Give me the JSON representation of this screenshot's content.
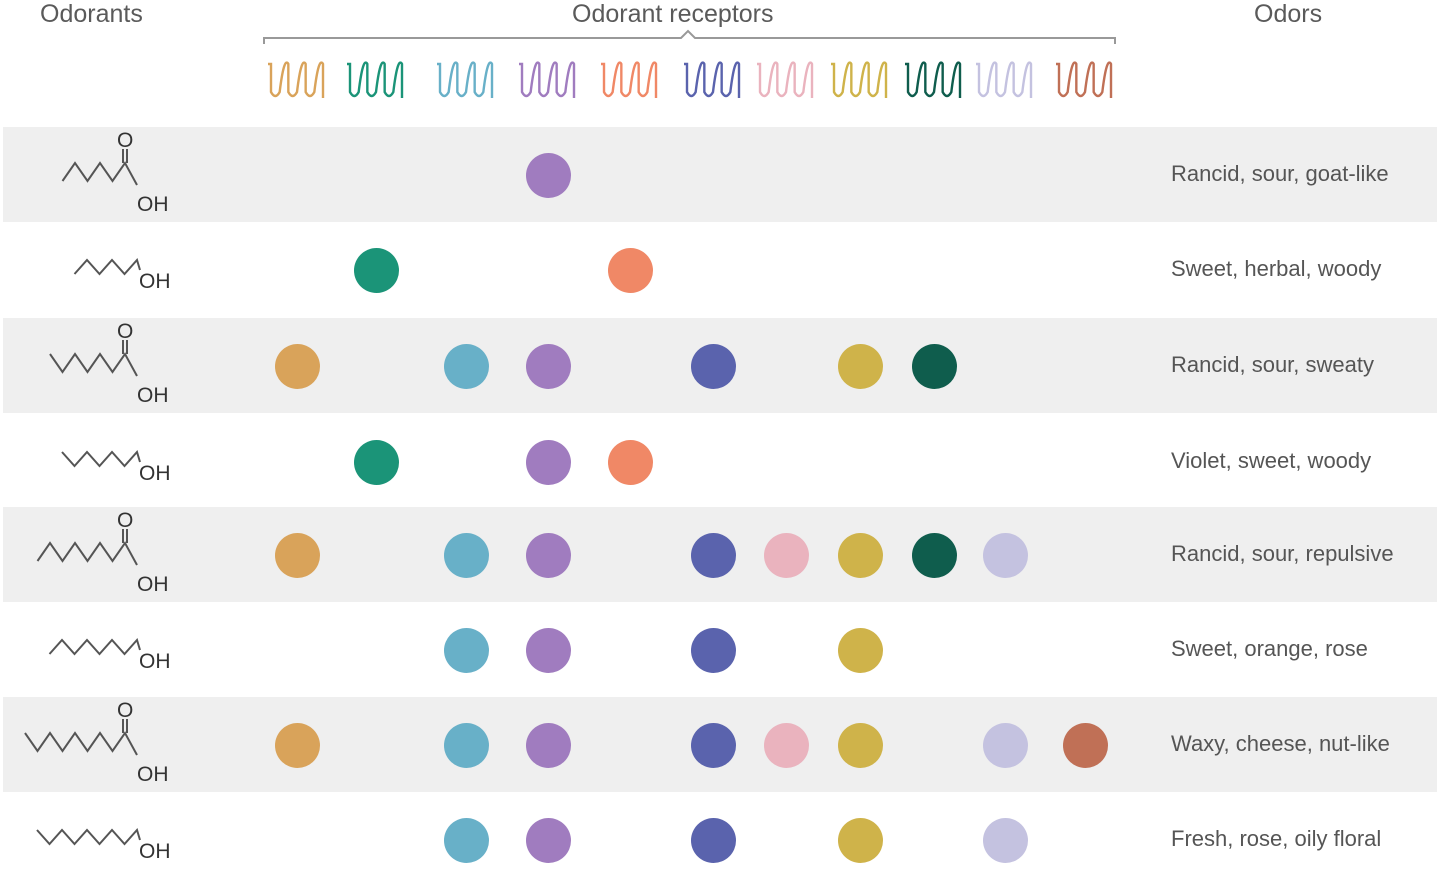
{
  "headers": {
    "odorants": "Odorants",
    "receptors": "Odorant receptors",
    "odors": "Odors"
  },
  "receptors": [
    {
      "color": "#d9a35a"
    },
    {
      "color": "#1b9478"
    },
    {
      "color": "#68b0c8"
    },
    {
      "color": "#a07cbf"
    },
    {
      "color": "#f08866"
    },
    {
      "color": "#5a63ad"
    },
    {
      "color": "#eab3be"
    },
    {
      "color": "#cfb34a"
    },
    {
      "color": "#0f5d4d"
    },
    {
      "color": "#c4c2e0"
    },
    {
      "color": "#c07056"
    }
  ],
  "rows": [
    {
      "molecule": "acid",
      "carbons": 6,
      "group_o": "O",
      "group_oh": "OH",
      "odor": "Rancid, sour, goat-like",
      "active": [
        3
      ]
    },
    {
      "molecule": "alcohol",
      "carbons": 6,
      "group_oh": "OH",
      "odor": "Sweet, herbal, woody",
      "active": [
        1,
        4
      ]
    },
    {
      "molecule": "acid",
      "carbons": 7,
      "group_o": "O",
      "group_oh": "OH",
      "odor": "Rancid, sour, sweaty",
      "active": [
        0,
        2,
        3,
        5,
        7,
        8
      ]
    },
    {
      "molecule": "alcohol",
      "carbons": 7,
      "group_oh": "OH",
      "odor": "Violet, sweet, woody",
      "active": [
        1,
        3,
        4
      ]
    },
    {
      "molecule": "acid",
      "carbons": 8,
      "group_o": "O",
      "group_oh": "OH",
      "odor": "Rancid, sour, repulsive",
      "active": [
        0,
        2,
        3,
        5,
        6,
        7,
        8,
        9
      ]
    },
    {
      "molecule": "alcohol",
      "carbons": 8,
      "group_oh": "OH",
      "odor": "Sweet, orange, rose",
      "active": [
        2,
        3,
        5,
        7
      ]
    },
    {
      "molecule": "acid",
      "carbons": 9,
      "group_o": "O",
      "group_oh": "OH",
      "odor": "Waxy, cheese, nut-like",
      "active": [
        0,
        2,
        3,
        5,
        6,
        7,
        9,
        10
      ]
    },
    {
      "molecule": "alcohol",
      "carbons": 9,
      "group_oh": "OH",
      "odor": "Fresh, rose, oily floral",
      "active": [
        2,
        3,
        5,
        7,
        9
      ]
    }
  ]
}
